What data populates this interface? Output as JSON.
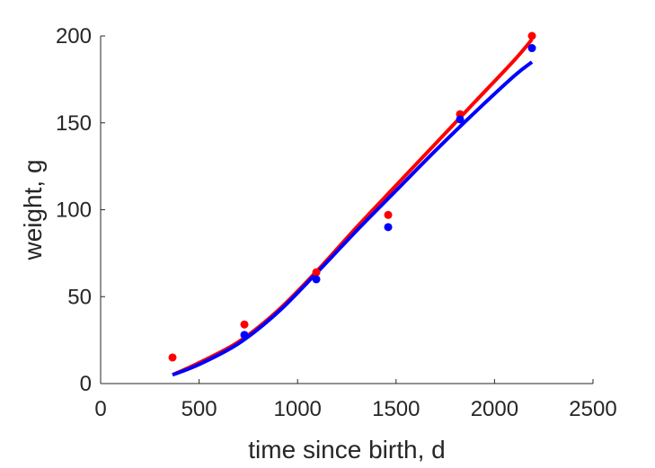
{
  "chart_data": {
    "type": "scatter",
    "title": "",
    "xlabel": "time since birth, d",
    "ylabel": "weight, g",
    "xlim": [
      0,
      2500
    ],
    "ylim": [
      0,
      200
    ],
    "xticks": [
      0,
      500,
      1000,
      1500,
      2000,
      2500
    ],
    "yticks": [
      0,
      50,
      100,
      150,
      200
    ],
    "grid": false,
    "series": [
      {
        "kind": "points",
        "color": "#ff0000",
        "x": [
          365,
          730,
          1095,
          1460,
          1825,
          2190
        ],
        "y": [
          15,
          34,
          64,
          97,
          155,
          200
        ]
      },
      {
        "kind": "points",
        "color": "#0000ff",
        "x": [
          730,
          1095,
          1460,
          1825,
          2190
        ],
        "y": [
          28,
          60,
          90,
          152,
          193
        ]
      },
      {
        "kind": "line",
        "color": "#ff0000",
        "x": [
          365,
          500,
          700,
          900,
          1100,
          1300,
          1500,
          1700,
          1900,
          2100,
          2190
        ],
        "y": [
          5,
          12,
          24,
          42,
          65,
          90,
          114,
          138,
          162,
          186,
          198
        ]
      },
      {
        "kind": "line",
        "color": "#0000ff",
        "x": [
          365,
          500,
          700,
          900,
          1100,
          1300,
          1500,
          1700,
          1900,
          2100,
          2190
        ],
        "y": [
          5,
          11,
          23,
          41,
          64,
          88,
          111,
          134,
          156,
          177,
          185
        ]
      }
    ]
  }
}
